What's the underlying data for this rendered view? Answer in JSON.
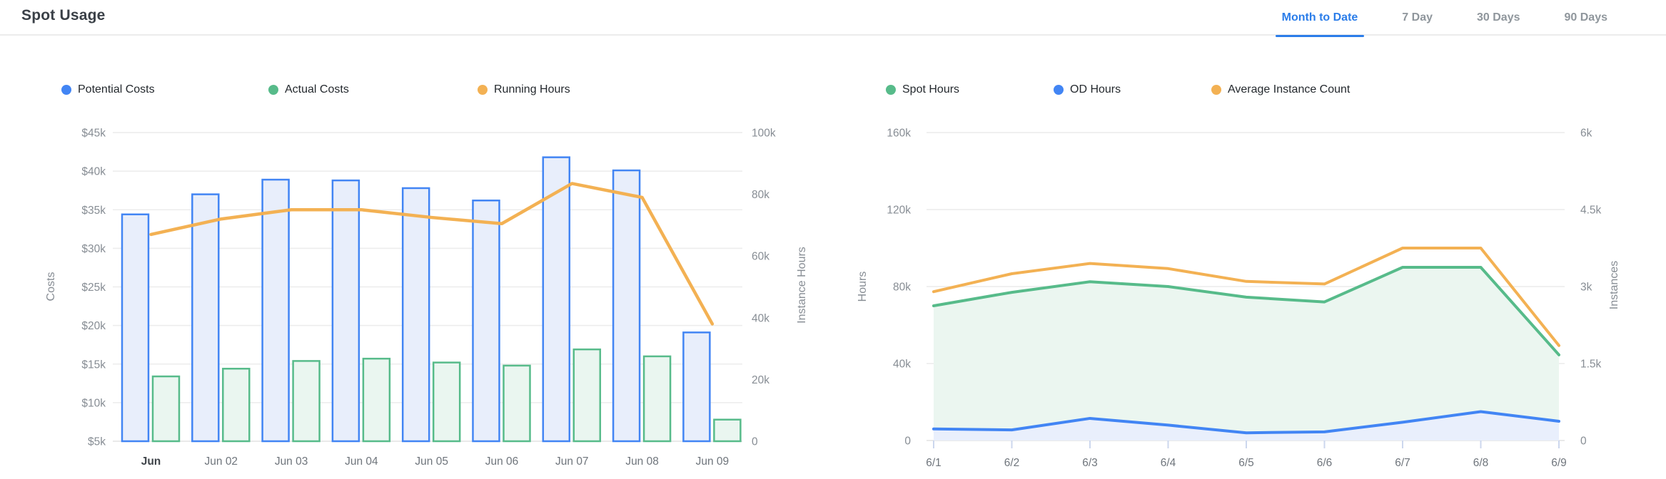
{
  "header": {
    "title": "Spot Usage"
  },
  "tabs": [
    {
      "label": "Month to Date",
      "active": true
    },
    {
      "label": "7 Day",
      "active": false
    },
    {
      "label": "30 Days",
      "active": false
    },
    {
      "label": "90 Days",
      "active": false
    }
  ],
  "colors": {
    "blue": "#4285F4",
    "green": "#57BB8A",
    "orange": "#F3B153",
    "blue_fill": "#E8EEFB",
    "green_fill": "#EAF6F0",
    "blue_area": "#E9EFFC",
    "green_area": "#EBF6F0",
    "tab_active": "#2B7DE9",
    "tab_inactive": "#8F969C",
    "grid": "#ECECEC",
    "axis_tick_mark": "#CCD7EE",
    "tick_text": "#878D94",
    "x_label_text": "#6F757C",
    "x_label_first_text": "#3F444A"
  },
  "chart_data": [
    {
      "type": "bar",
      "title": "",
      "categories": [
        "Jun",
        "Jun 02",
        "Jun 03",
        "Jun 04",
        "Jun 05",
        "Jun 06",
        "Jun 07",
        "Jun 08",
        "Jun 09"
      ],
      "series": [
        {
          "name": "Potential Costs",
          "type": "bar",
          "axis": "left",
          "color": "#4285F4",
          "fill": "#E8EEFB",
          "values": [
            34400,
            37000,
            38900,
            38800,
            37800,
            36200,
            41800,
            40100,
            19100
          ]
        },
        {
          "name": "Actual Costs",
          "type": "bar",
          "axis": "left",
          "color": "#57BB8A",
          "fill": "#EAF6F0",
          "values": [
            13400,
            14400,
            15400,
            15700,
            15200,
            14800,
            16900,
            16000,
            7800
          ]
        },
        {
          "name": "Running Hours",
          "type": "line",
          "axis": "right",
          "color": "#F3B153",
          "values": [
            67000,
            72000,
            75000,
            75000,
            72500,
            70500,
            83500,
            79000,
            38000
          ]
        }
      ],
      "y_left": {
        "label": "Costs",
        "min": 5000,
        "max": 45000,
        "ticks": [
          "$45k",
          "$40k",
          "$35k",
          "$30k",
          "$25k",
          "$20k",
          "$15k",
          "$10k",
          "$5k"
        ]
      },
      "y_right": {
        "label": "Instance Hours",
        "min": 0,
        "max": 100000,
        "ticks": [
          "100k",
          "80k",
          "60k",
          "40k",
          "20k",
          "0"
        ]
      },
      "legend": [
        "Potential Costs",
        "Actual Costs",
        "Running Hours"
      ],
      "grid": true,
      "legend_position": "top"
    },
    {
      "type": "area",
      "title": "",
      "categories": [
        "6/1",
        "6/2",
        "6/3",
        "6/4",
        "6/5",
        "6/6",
        "6/7",
        "6/8",
        "6/9"
      ],
      "series": [
        {
          "name": "Spot Hours",
          "type": "area",
          "axis": "left",
          "color": "#57BB8A",
          "fill": "#EBF6F0",
          "values": [
            70000,
            77000,
            82500,
            80000,
            74500,
            72000,
            90000,
            90000,
            44500
          ]
        },
        {
          "name": "OD Hours",
          "type": "area",
          "axis": "left",
          "color": "#4285F4",
          "fill": "#E9EFFC",
          "values": [
            6000,
            5500,
            11500,
            8000,
            4000,
            4500,
            9500,
            15000,
            10000
          ]
        },
        {
          "name": "Average Instance Count",
          "type": "line",
          "axis": "right",
          "color": "#F3B153",
          "values": [
            2900,
            3250,
            3450,
            3350,
            3100,
            3050,
            3750,
            3750,
            1850
          ]
        }
      ],
      "y_left": {
        "label": "Hours",
        "min": 0,
        "max": 160000,
        "ticks": [
          "160k",
          "120k",
          "80k",
          "40k",
          "0"
        ]
      },
      "y_right": {
        "label": "Instances",
        "min": 0,
        "max": 6000,
        "ticks": [
          "6k",
          "4.5k",
          "3k",
          "1.5k",
          "0"
        ]
      },
      "legend": [
        "Spot Hours",
        "OD Hours",
        "Average Instance Count"
      ],
      "grid": true,
      "legend_position": "top"
    }
  ]
}
